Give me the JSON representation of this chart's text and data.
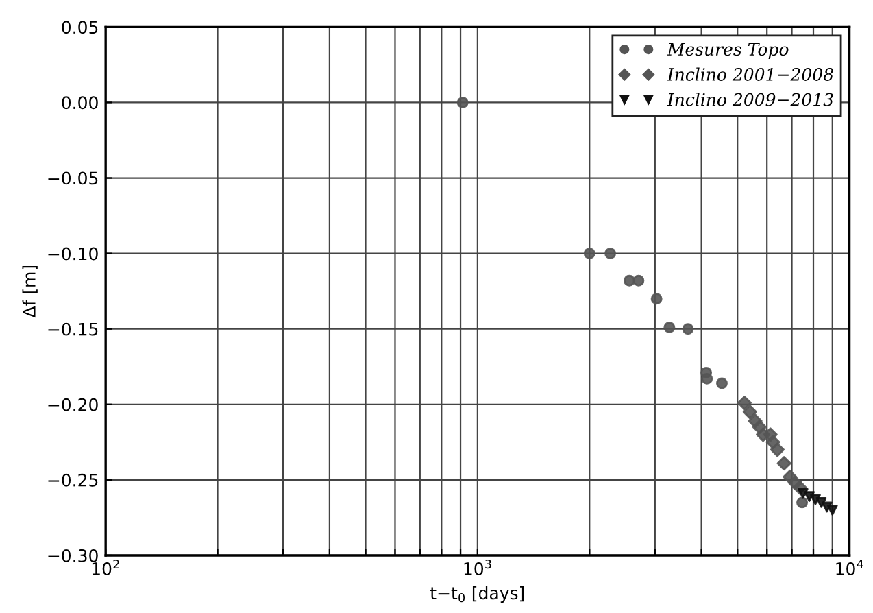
{
  "chart_data": {
    "type": "scatter",
    "xlabel": "t−t$_{0}$ [days]",
    "ylabel": "Δf [m]",
    "log": "x",
    "grid": true,
    "legend": "top right",
    "xlim": [
      100,
      10000
    ],
    "ylim": [
      -0.3,
      0.05
    ],
    "xticks": [
      {
        "value": 100,
        "label": "10$^{2}$"
      },
      {
        "value": 200,
        "label": null
      },
      {
        "value": 300,
        "label": null
      },
      {
        "value": 400,
        "label": null
      },
      {
        "value": 500,
        "label": null
      },
      {
        "value": 600,
        "label": null
      },
      {
        "value": 700,
        "label": null
      },
      {
        "value": 800,
        "label": null
      },
      {
        "value": 900,
        "label": null
      },
      {
        "value": 1000,
        "label": "10$^{3}$"
      },
      {
        "value": 2000,
        "label": null
      },
      {
        "value": 3000,
        "label": null
      },
      {
        "value": 4000,
        "label": null
      },
      {
        "value": 5000,
        "label": null
      },
      {
        "value": 6000,
        "label": null
      },
      {
        "value": 7000,
        "label": null
      },
      {
        "value": 8000,
        "label": null
      },
      {
        "value": 9000,
        "label": null
      },
      {
        "value": 10000,
        "label": "10$^{4}$"
      }
    ],
    "yticks": [
      {
        "value": 0.05,
        "label": "0.05"
      },
      {
        "value": 0.0,
        "label": "0.00"
      },
      {
        "value": -0.05,
        "label": "−0.05"
      },
      {
        "value": -0.1,
        "label": "−0.10"
      },
      {
        "value": -0.15,
        "label": "−0.15"
      },
      {
        "value": -0.2,
        "label": "−0.20"
      },
      {
        "value": -0.25,
        "label": "−0.25"
      },
      {
        "value": -0.3,
        "label": "−0.30"
      }
    ],
    "series": [
      {
        "name": "Mesures Topo",
        "color": "#555555",
        "marker": "circle",
        "x": [
          912,
          2000,
          2275,
          2560,
          2710,
          3030,
          3280,
          3680,
          4120,
          4140,
          4540,
          5300,
          7460
        ],
        "values": [
          0.0,
          -0.1,
          -0.1,
          -0.118,
          -0.118,
          -0.13,
          -0.149,
          -0.15,
          -0.179,
          -0.183,
          -0.186,
          null,
          -0.265
        ]
      },
      {
        "name": "Inclino 2001−2008",
        "color": "#555555",
        "marker": "diamond",
        "x": [
          5220,
          5400,
          5580,
          5730,
          5860,
          6130,
          6230,
          6400,
          6670,
          6920,
          7150,
          7350
        ],
        "values": [
          -0.199,
          -0.205,
          -0.211,
          -0.215,
          -0.22,
          -0.22,
          -0.225,
          -0.23,
          -0.239,
          -0.248,
          -0.252,
          -0.255
        ]
      },
      {
        "name": "Inclino 2009−2013",
        "color": "#111111",
        "marker": "triangle",
        "x": [
          7500,
          7800,
          8100,
          8400,
          8700,
          9000
        ],
        "values": [
          -0.259,
          -0.261,
          -0.263,
          -0.265,
          -0.268,
          -0.27
        ]
      }
    ]
  }
}
